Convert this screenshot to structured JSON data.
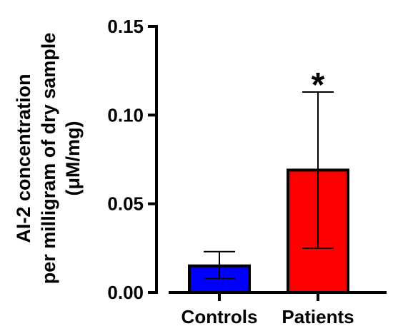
{
  "chart_data": {
    "type": "bar",
    "categories": [
      "Controls",
      "Patients"
    ],
    "values": [
      0.015,
      0.069
    ],
    "error_upper": [
      0.023,
      0.113
    ],
    "error_lower": [
      0.008,
      0.025
    ],
    "bar_colors": [
      "#0000ff",
      "#ff0000"
    ],
    "ylabel_lines": [
      "AI-2 concentration",
      "per milligram of dry sample",
      "(μM/mg)"
    ],
    "ylim": [
      0,
      0.15
    ],
    "yticks": [
      "0.00",
      "0.05",
      "0.10",
      "0.15"
    ],
    "annotation": "*",
    "annotation_category": "Patients",
    "grid": false
  }
}
